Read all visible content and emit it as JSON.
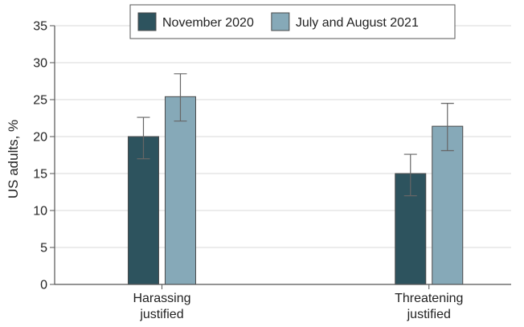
{
  "chart_data": {
    "type": "bar",
    "categories": [
      [
        "Harassing",
        "justified"
      ],
      [
        "Threatening",
        "justified"
      ]
    ],
    "series": [
      {
        "name": "November 2020",
        "color": "#2d535e",
        "values": [
          20,
          15
        ],
        "error_low": [
          17,
          12
        ],
        "error_high": [
          22.6,
          17.6
        ]
      },
      {
        "name": "July and August 2021",
        "color": "#86a9b8",
        "values": [
          25.4,
          21.4
        ],
        "error_low": [
          22.1,
          18.1
        ],
        "error_high": [
          28.5,
          24.5
        ]
      }
    ],
    "ylabel": "US adults, %",
    "ylim": [
      0,
      35
    ],
    "yticks": [
      0,
      5,
      10,
      15,
      20,
      25,
      30,
      35
    ],
    "grid": true,
    "legend_position": "top-center"
  }
}
